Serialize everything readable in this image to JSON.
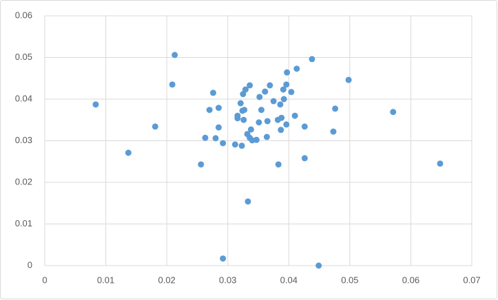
{
  "chart_data": {
    "type": "scatter",
    "color": "#5b9bd5",
    "grid": true,
    "xlim": [
      0,
      0.07
    ],
    "xticks": [
      0,
      0.01,
      0.02,
      0.03,
      0.04,
      0.05,
      0.06,
      0.07
    ],
    "ylim": [
      0,
      0.06
    ],
    "yticks": [
      0,
      0.01,
      0.02,
      0.03,
      0.04,
      0.05,
      0.06
    ],
    "x": [
      0.00835,
      0.0137,
      0.0181,
      0.0209,
      0.0213,
      0.0256,
      0.0263,
      0.027,
      0.0276,
      0.028,
      0.0285,
      0.0285,
      0.0292,
      0.0292,
      0.0312,
      0.0316,
      0.0316,
      0.0321,
      0.0323,
      0.0324,
      0.0325,
      0.0326,
      0.0327,
      0.0329,
      0.0332,
      0.0333,
      0.0336,
      0.0336,
      0.0338,
      0.034,
      0.0347,
      0.0351,
      0.0352,
      0.0355,
      0.0361,
      0.0364,
      0.0365,
      0.0369,
      0.0375,
      0.0382,
      0.0383,
      0.0386,
      0.0387,
      0.0388,
      0.0391,
      0.0392,
      0.0396,
      0.0397,
      0.0396,
      0.0404,
      0.041,
      0.0413,
      0.0426,
      0.0426,
      0.0438,
      0.0449,
      0.0473,
      0.0476,
      0.0498,
      0.0571,
      0.0648
    ],
    "values": [
      0.0387,
      0.0271,
      0.0334,
      0.0435,
      0.0506,
      0.0243,
      0.0307,
      0.0374,
      0.0415,
      0.0306,
      0.0379,
      0.0332,
      0.0294,
      0.0017,
      0.0291,
      0.0354,
      0.036,
      0.039,
      0.0288,
      0.0372,
      0.0412,
      0.035,
      0.0374,
      0.0423,
      0.0316,
      0.0154,
      0.0433,
      0.0307,
      0.0327,
      0.0301,
      0.0302,
      0.0344,
      0.0405,
      0.0374,
      0.0418,
      0.0309,
      0.0347,
      0.0433,
      0.0395,
      0.035,
      0.0243,
      0.0387,
      0.0326,
      0.0355,
      0.0423,
      0.04,
      0.0435,
      0.0464,
      0.0339,
      0.0417,
      0.036,
      0.0473,
      0.0334,
      0.0258,
      0.0496,
      0.0,
      0.0322,
      0.0377,
      0.0446,
      0.0369,
      0.0245
    ]
  }
}
